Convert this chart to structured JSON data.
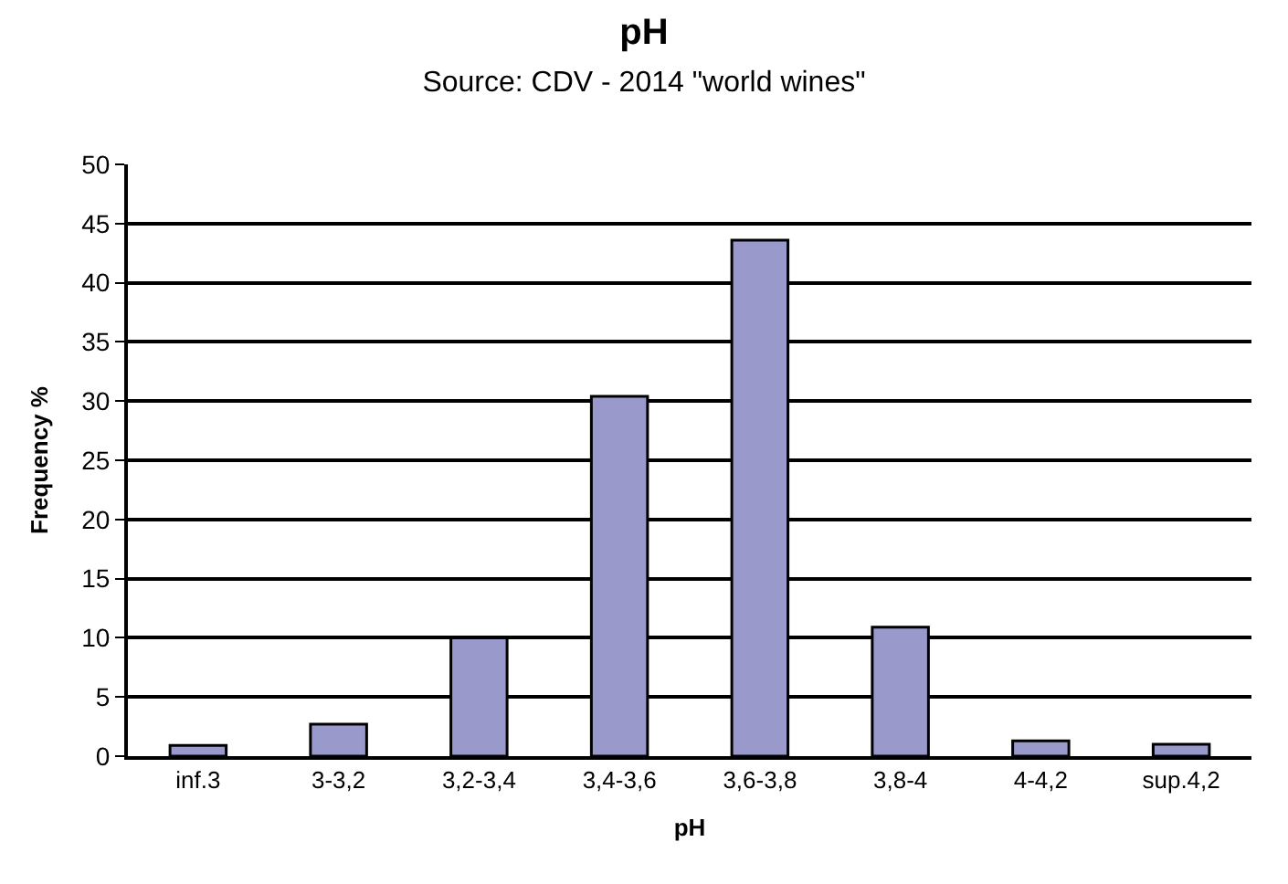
{
  "chart_data": {
    "type": "bar",
    "title": "pH",
    "subtitle": "Source: CDV - 2014 \"world wines\"",
    "xlabel": "pH",
    "ylabel": "Frequency %",
    "categories": [
      "inf.3",
      "3-3,2",
      "3,2-3,4",
      "3,4-3,6",
      "3,6-3,8",
      "3,8-4",
      "4-4,2",
      "sup.4,2"
    ],
    "values": [
      0.9,
      2.7,
      10.0,
      30.4,
      43.6,
      10.9,
      1.3,
      1.0
    ],
    "color": "#9999cc",
    "ylim": [
      0,
      50
    ],
    "yticks": [
      0,
      5,
      10,
      15,
      20,
      25,
      30,
      35,
      40,
      45,
      50
    ],
    "grid": "y",
    "legend": false
  }
}
